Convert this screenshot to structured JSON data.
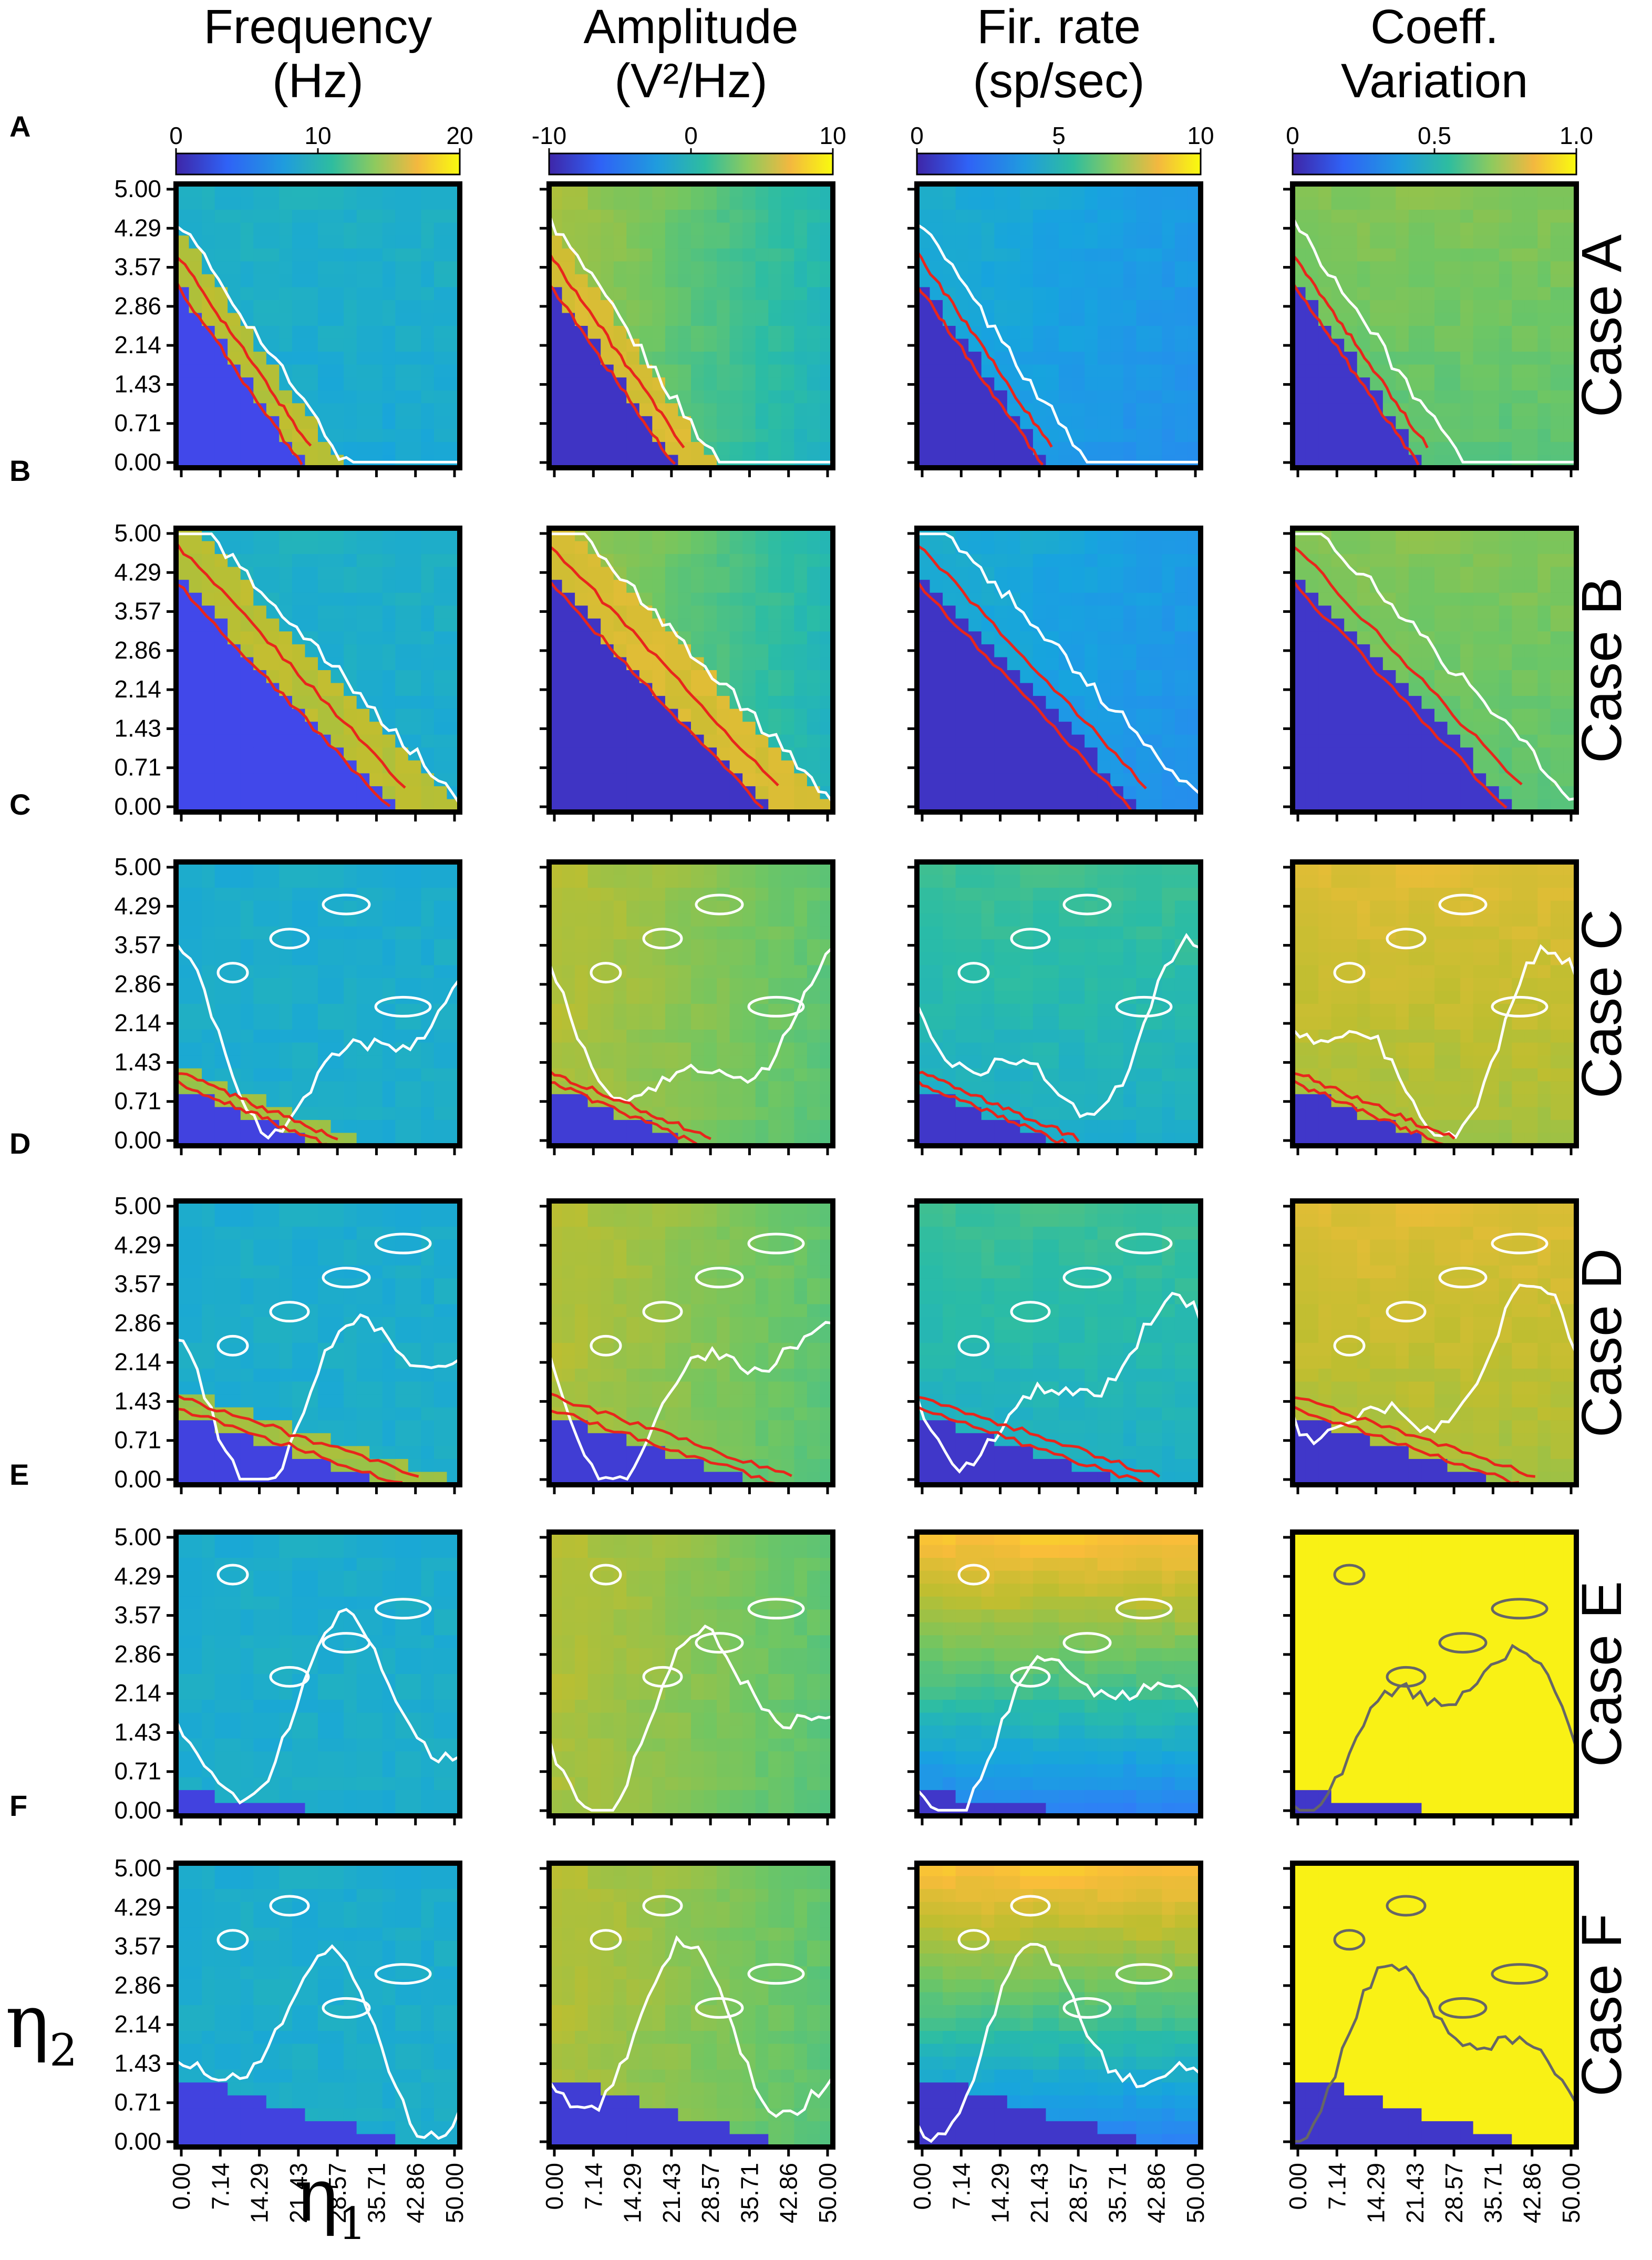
{
  "figure": {
    "columns": [
      {
        "title_line1": "Frequency",
        "title_line2": "(Hz)",
        "colorbar_ticks": [
          "0",
          "10",
          "20"
        ],
        "colorbar": "parula"
      },
      {
        "title_line1": "Amplitude",
        "title_line2": "(V²/Hz)",
        "colorbar_ticks": [
          "-10",
          "0",
          "10"
        ],
        "colorbar": "parula"
      },
      {
        "title_line1": "Fir.  rate",
        "title_line2": "(sp/sec)",
        "colorbar_ticks": [
          "0",
          "5",
          "10"
        ],
        "colorbar": "parula"
      },
      {
        "title_line1": "Coeff.",
        "title_line2": "Variation",
        "colorbar_ticks": [
          "0",
          "0.5",
          "1.0"
        ],
        "colorbar": "parula"
      }
    ],
    "rows": [
      {
        "panel": "A",
        "case": "Case  A"
      },
      {
        "panel": "B",
        "case": "Case  B"
      },
      {
        "panel": "C",
        "case": "Case  C"
      },
      {
        "panel": "D",
        "case": "Case  D"
      },
      {
        "panel": "E",
        "case": "Case  E"
      },
      {
        "panel": "F",
        "case": "Case  F"
      }
    ],
    "eta1_symbol": "η",
    "eta1_sub": "1",
    "eta2_symbol": "η",
    "eta2_sub": "2",
    "colors": {
      "contour_white": "#ffffff",
      "contour_red": "#e8261c",
      "contour_gray": "#666666",
      "frame": "#000000"
    }
  },
  "chart_data": {
    "type": "heatmap",
    "layout": "6 rows x 4 columns grid of heatmaps",
    "x_axis": {
      "ticks": [
        "0.00",
        "7.14",
        "14.29",
        "21.43",
        "28.57",
        "35.71",
        "42.86",
        "50.00"
      ],
      "range": [
        0,
        50
      ]
    },
    "y_axis": {
      "ticks": [
        "5.00",
        "4.29",
        "3.57",
        "2.86",
        "2.14",
        "1.43",
        "0.71",
        "0.00"
      ],
      "range": [
        0,
        5
      ]
    },
    "colorbars": [
      {
        "label": "Frequency (Hz)",
        "range": [
          0,
          20
        ]
      },
      {
        "label": "Amplitude (V²/Hz)",
        "range": [
          -15,
          15
        ]
      },
      {
        "label": "Fir. rate (sp/sec)",
        "range": [
          0,
          10
        ]
      },
      {
        "label": "Coeff. Variation",
        "range": [
          0,
          1.0
        ]
      }
    ],
    "cases": [
      "Case A",
      "Case B",
      "Case C",
      "Case D",
      "Case E",
      "Case F"
    ],
    "colormap": "parula"
  }
}
